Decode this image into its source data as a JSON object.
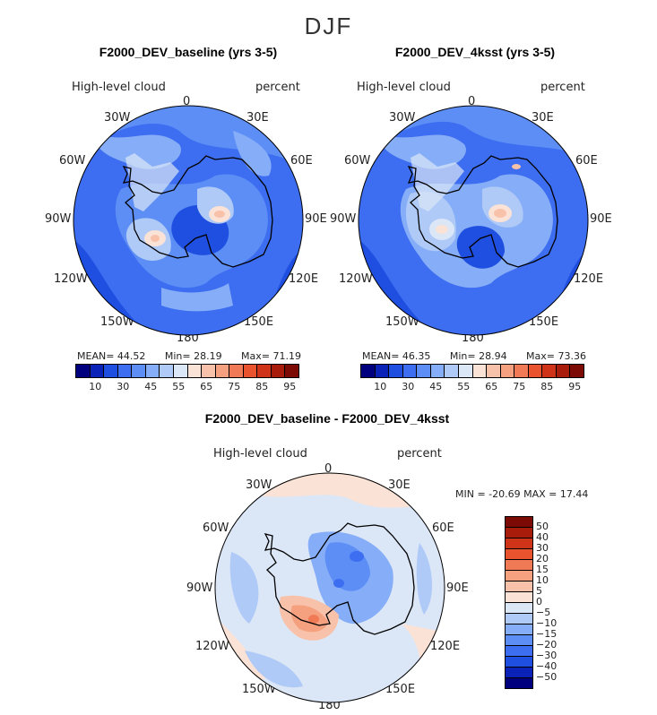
{
  "season": "DJF",
  "panels": [
    {
      "title": "F2000_DEV_baseline (yrs 3-5)",
      "variable": "High-level cloud",
      "units": "percent",
      "stats": {
        "mean_label": "MEAN=",
        "mean": "44.52",
        "min_label": "Min=",
        "min": "28.19",
        "max_label": "Max=",
        "max": "71.19"
      }
    },
    {
      "title": "F2000_DEV_4ksst (yrs 3-5)",
      "variable": "High-level cloud",
      "units": "percent",
      "stats": {
        "mean_label": "MEAN=",
        "mean": "46.35",
        "min_label": "Min=",
        "min": "28.94",
        "max_label": "Max=",
        "max": "73.36"
      }
    }
  ],
  "diff_panel": {
    "title": "F2000_DEV_baseline - F2000_DEV_4ksst",
    "variable": "High-level cloud",
    "units": "percent",
    "minmax": "MIN = -20.69 MAX =  17.44"
  },
  "lon_labels": {
    "top": "0",
    "n30e": "30E",
    "n60e": "60E",
    "e90": "90E",
    "s120e": "120E",
    "s150e": "150E",
    "bottom": "180",
    "s150w": "150W",
    "s120w": "120W",
    "w90": "90W",
    "n60w": "60W",
    "n30w": "30W"
  },
  "colorbar_abs": {
    "ticks": [
      "10",
      "30",
      "45",
      "55",
      "65",
      "75",
      "85",
      "95"
    ],
    "colors": [
      "#00007f",
      "#0a22b8",
      "#1f4fe0",
      "#3d6df0",
      "#5c8ef5",
      "#86adf7",
      "#b0caf7",
      "#dbe7f7",
      "#fbe2d6",
      "#f8c2aa",
      "#f5a07f",
      "#f07a55",
      "#e9542f",
      "#d03418",
      "#a81c0c",
      "#7c0a05"
    ]
  },
  "colorbar_diff": {
    "labels": [
      "50",
      "40",
      "30",
      "20",
      "15",
      "10",
      "5",
      "0",
      "−5",
      "−10",
      "−15",
      "−20",
      "−30",
      "−40",
      "−50"
    ],
    "colors": [
      "#7c0a05",
      "#a81c0c",
      "#d03418",
      "#e9542f",
      "#f07a55",
      "#f5a07f",
      "#f8c2aa",
      "#fbe2d6",
      "#dbe7f7",
      "#b0caf7",
      "#86adf7",
      "#5c8ef5",
      "#3d6df0",
      "#1f4fe0",
      "#0a22b8",
      "#00007f"
    ]
  }
}
